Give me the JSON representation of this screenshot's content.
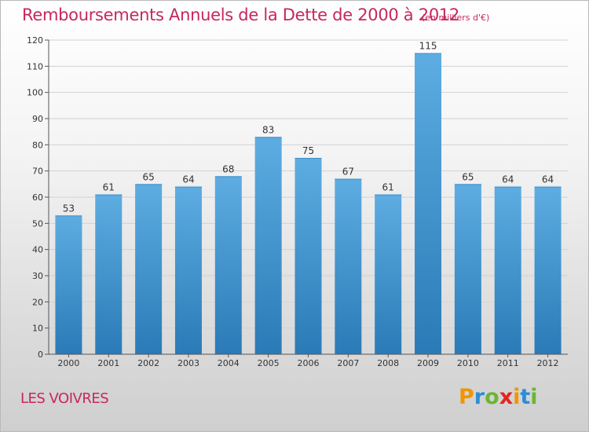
{
  "chart_data": {
    "type": "bar",
    "title": "Remboursements Annuels de la Dette de 2000 à 2012",
    "subtitle": "(en milliers d'€)",
    "categories": [
      "2000",
      "2001",
      "2002",
      "2003",
      "2004",
      "2005",
      "2006",
      "2007",
      "2008",
      "2009",
      "2010",
      "2011",
      "2012"
    ],
    "values": [
      53,
      61,
      65,
      64,
      68,
      83,
      75,
      67,
      61,
      115,
      65,
      64,
      64
    ],
    "ylim": [
      0,
      120
    ],
    "yticks": [
      0,
      10,
      20,
      30,
      40,
      50,
      60,
      70,
      80,
      90,
      100,
      110,
      120
    ],
    "grid": true,
    "colors": {
      "bar_top": "#5dade2",
      "bar_bottom": "#2a7ab7",
      "text": "#c8275a"
    }
  },
  "footer": {
    "town": "LES VOIVRES",
    "logo_letters": [
      "P",
      "r",
      "o",
      "x",
      "i",
      "t",
      "i"
    ],
    "logo_colors": [
      "#f29400",
      "#2d8dd6",
      "#6cb533",
      "#e2261f",
      "#f29400",
      "#2d8dd6",
      "#6cb533"
    ]
  }
}
